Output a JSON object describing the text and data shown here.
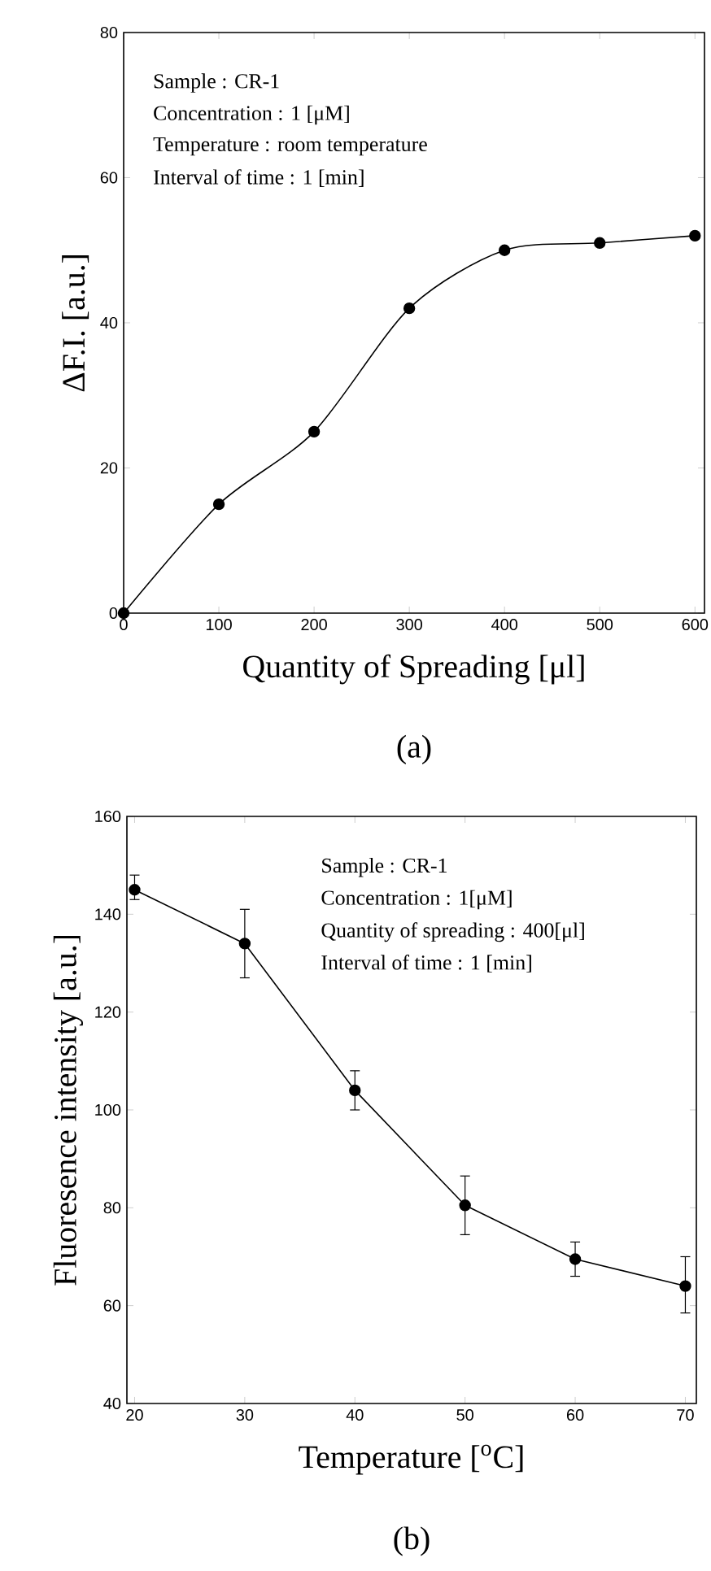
{
  "chart_data": [
    {
      "type": "line",
      "title": "(a)",
      "xlabel": "Quantity of Spreading [μl]",
      "ylabel": "ΔF.I. [a.u.]",
      "x": [
        0,
        100,
        200,
        300,
        400,
        500,
        600
      ],
      "series": [
        {
          "color": "#000000",
          "values": [
            0,
            15,
            25,
            42,
            50,
            51,
            52
          ]
        }
      ],
      "xlim": [
        0,
        610
      ],
      "ylim": [
        0,
        80
      ],
      "xticks": [
        0,
        100,
        200,
        300,
        400,
        500,
        600
      ],
      "yticks": [
        0,
        20,
        40,
        60,
        80
      ],
      "marker": "circle",
      "line_style": "solid",
      "grid": false,
      "annotations": [
        "Sample : CR-1",
        "Concentration : 1 [μM]",
        "Temperature : room temperature",
        "Interval of time : 1 [min]"
      ]
    },
    {
      "type": "line",
      "title": "(b)",
      "xlabel": "Temperature [$^{o}$C]",
      "ylabel": "Fluoresence intensity [a.u.]",
      "x": [
        20,
        30,
        40,
        50,
        60,
        70
      ],
      "series": [
        {
          "color": "#000000",
          "values": [
            145,
            134,
            104,
            80.5,
            69.5,
            64
          ],
          "errors": [
            [
              143,
              148
            ],
            [
              127,
              141
            ],
            [
              100,
              108
            ],
            [
              74.5,
              86.5
            ],
            [
              66,
              73
            ],
            [
              58.5,
              70
            ]
          ]
        }
      ],
      "xlim": [
        19.3,
        71
      ],
      "ylim": [
        40,
        160
      ],
      "xticks": [
        20,
        30,
        40,
        50,
        60,
        70
      ],
      "yticks": [
        40,
        60,
        80,
        100,
        120,
        140,
        160
      ],
      "marker": "circle",
      "line_style": "solid",
      "grid": false,
      "annotations": [
        "Sample : CR-1",
        "Concentration : 1[μM]",
        "Quantity of spreading : 400[μl]",
        "Interval of time : 1 [min]"
      ]
    }
  ]
}
